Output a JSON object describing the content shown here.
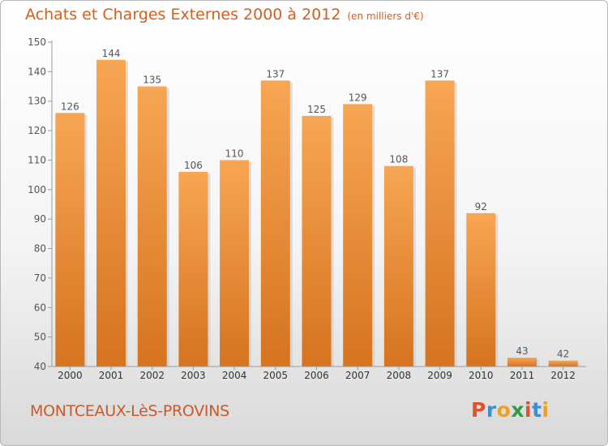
{
  "header": {
    "title": "Achats et Charges Externes 2000 à 2012",
    "unit": "(en milliers d'€)"
  },
  "footer": {
    "commune": "MONTCEAUX-LèS-PROVINS",
    "logo_text": "Proxiti"
  },
  "logo_colors": [
    "#e0522b",
    "#3b8fd6",
    "#f0a020",
    "#2e9e45",
    "#e0522b",
    "#3b8fd6",
    "#f0a020"
  ],
  "colors": {
    "bar": "#f09a45",
    "title": "#d35f1e"
  },
  "chart_data": {
    "type": "bar",
    "categories": [
      "2000",
      "2001",
      "2002",
      "2003",
      "2004",
      "2005",
      "2006",
      "2007",
      "2008",
      "2009",
      "2010",
      "2011",
      "2012"
    ],
    "values": [
      126,
      144,
      135,
      106,
      110,
      137,
      125,
      129,
      108,
      137,
      92,
      43,
      42
    ],
    "title": "Achats et Charges Externes 2000 à 2012",
    "ylim": [
      40,
      150
    ],
    "yticks": [
      40,
      50,
      60,
      70,
      80,
      90,
      100,
      110,
      120,
      130,
      140,
      150
    ],
    "grid": false,
    "data_labels": true
  }
}
